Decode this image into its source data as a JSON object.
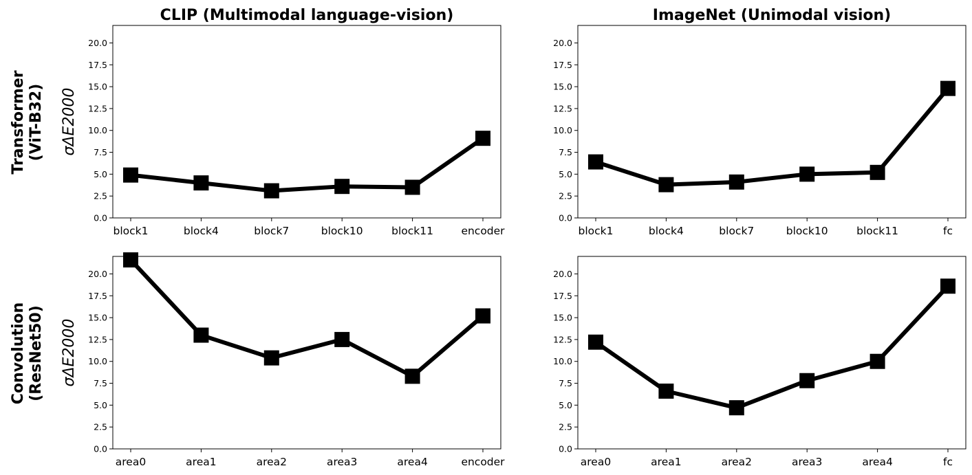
{
  "column_titles": [
    "CLIP (Multimodal language-vision)",
    "ImageNet (Unimodal vision)"
  ],
  "row_labels": [
    [
      "Transformer",
      "(ViT-B32)"
    ],
    [
      "Convolution",
      "(ResNet50)"
    ]
  ],
  "chart_data": [
    {
      "type": "line",
      "title": "CLIP (Multimodal language-vision)",
      "row_label": "Transformer (ViT-B32)",
      "ylabel": "σΔE2000",
      "categories": [
        "block1",
        "block4",
        "block7",
        "block10",
        "block11",
        "encoder"
      ],
      "values": [
        4.9,
        4.0,
        3.1,
        3.6,
        3.5,
        9.1
      ],
      "ylim": [
        0,
        22
      ],
      "yticks": [
        "0.0",
        "2.5",
        "5.0",
        "7.5",
        "10.0",
        "12.5",
        "15.0",
        "17.5",
        "20.0"
      ],
      "marker": "square",
      "color": "#000000",
      "grid": false
    },
    {
      "type": "line",
      "title": "ImageNet (Unimodal vision)",
      "row_label": "Transformer (ViT-B32)",
      "ylabel": "",
      "categories": [
        "block1",
        "block4",
        "block7",
        "block10",
        "block11",
        "fc"
      ],
      "values": [
        6.4,
        3.8,
        4.1,
        5.0,
        5.2,
        14.8
      ],
      "ylim": [
        0,
        22
      ],
      "yticks": [
        "0.0",
        "2.5",
        "5.0",
        "7.5",
        "10.0",
        "12.5",
        "15.0",
        "17.5",
        "20.0"
      ],
      "marker": "square",
      "color": "#000000",
      "grid": false
    },
    {
      "type": "line",
      "title": "",
      "row_label": "Convolution (ResNet50)",
      "ylabel": "σΔE2000",
      "categories": [
        "area0",
        "area1",
        "area2",
        "area3",
        "area4",
        "encoder"
      ],
      "values": [
        21.6,
        13.0,
        10.4,
        12.5,
        8.3,
        15.2
      ],
      "ylim": [
        0,
        22
      ],
      "yticks": [
        "0.0",
        "2.5",
        "5.0",
        "7.5",
        "10.0",
        "12.5",
        "15.0",
        "17.5",
        "20.0"
      ],
      "marker": "square",
      "color": "#000000",
      "grid": false
    },
    {
      "type": "line",
      "title": "",
      "row_label": "Convolution (ResNet50)",
      "ylabel": "",
      "categories": [
        "area0",
        "area1",
        "area2",
        "area3",
        "area4",
        "fc"
      ],
      "values": [
        12.2,
        6.6,
        4.7,
        7.8,
        10.0,
        18.6
      ],
      "ylim": [
        0,
        22
      ],
      "yticks": [
        "0.0",
        "2.5",
        "5.0",
        "7.5",
        "10.0",
        "12.5",
        "15.0",
        "17.5",
        "20.0"
      ],
      "marker": "square",
      "color": "#000000",
      "grid": false
    }
  ]
}
